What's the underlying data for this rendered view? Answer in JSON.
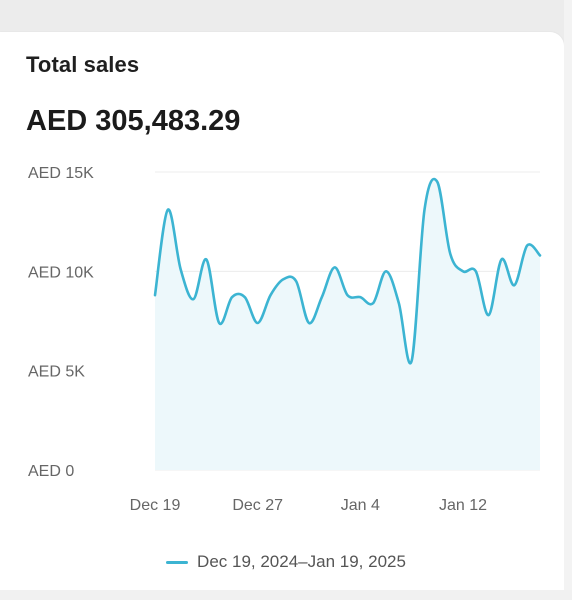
{
  "card": {
    "title": "Total sales",
    "total_value": "AED 305,483.29"
  },
  "colors": {
    "line": "#3cb4d2",
    "area": "#edf8fb",
    "grid": "#ececec",
    "tick": "#666666"
  },
  "chart_data": {
    "type": "line",
    "title": "Total sales",
    "y_tick_labels": [
      "AED 0",
      "AED 5K",
      "AED 10K",
      "AED 15K"
    ],
    "y_tick_values": [
      0,
      5000,
      10000,
      15000
    ],
    "ylim": [
      0,
      15000
    ],
    "x_tick_labels": [
      "Dec 19",
      "Dec 27",
      "Jan 4",
      "Jan 12"
    ],
    "x_tick_index": [
      0,
      8,
      16,
      24
    ],
    "grid": true,
    "legend_position": "bottom",
    "series": [
      {
        "name": "Dec 19, 2024–Jan 19, 2025",
        "values": [
          8800,
          13100,
          10100,
          8600,
          10600,
          7400,
          8700,
          8700,
          7400,
          8800,
          9600,
          9500,
          7400,
          8700,
          10200,
          8800,
          8700,
          8400,
          10000,
          8400,
          5500,
          13100,
          14500,
          10900,
          10000,
          10000,
          7800,
          10600,
          9300,
          11300,
          10800
        ]
      }
    ]
  }
}
